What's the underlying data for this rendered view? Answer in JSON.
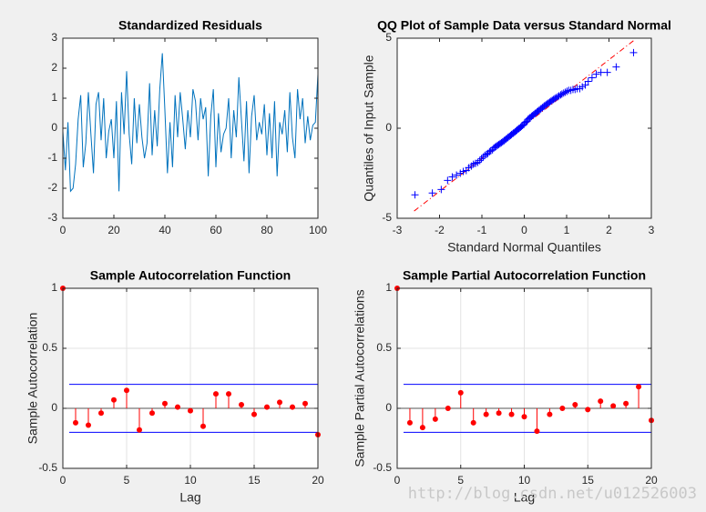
{
  "chart_data": [
    {
      "type": "line",
      "title": "Standardized Residuals",
      "color": "#0072bd",
      "x": [
        0,
        1,
        2,
        3,
        4,
        5,
        6,
        7,
        8,
        9,
        10,
        11,
        12,
        13,
        14,
        15,
        16,
        17,
        18,
        19,
        20,
        21,
        22,
        23,
        24,
        25,
        26,
        27,
        28,
        29,
        30,
        31,
        32,
        33,
        34,
        35,
        36,
        37,
        38,
        39,
        40,
        41,
        42,
        43,
        44,
        45,
        46,
        47,
        48,
        49,
        50,
        51,
        52,
        53,
        54,
        55,
        56,
        57,
        58,
        59,
        60,
        61,
        62,
        63,
        64,
        65,
        66,
        67,
        68,
        69,
        70,
        71,
        72,
        73,
        74,
        75,
        76,
        77,
        78,
        79,
        80,
        81,
        82,
        83,
        84,
        85,
        86,
        87,
        88,
        89,
        90,
        91,
        92,
        93,
        94,
        95,
        96,
        97,
        98,
        99,
        100
      ],
      "y": [
        -0.1,
        -1.4,
        0.2,
        -2.1,
        -2.0,
        -1.2,
        0.3,
        1.1,
        -1.3,
        -0.5,
        1.2,
        -0.2,
        -1.5,
        0.8,
        1.2,
        -0.4,
        1.0,
        -1.0,
        -0.1,
        0.3,
        -1.0,
        0.9,
        -2.1,
        1.2,
        -0.2,
        1.9,
        -0.2,
        -1.2,
        1.0,
        -0.5,
        0.8,
        -0.3,
        -1.0,
        -0.5,
        1.5,
        -0.9,
        0.6,
        -0.6,
        1.3,
        2.5,
        0.6,
        -1.5,
        0.2,
        -1.3,
        1.1,
        -0.3,
        1.2,
        0.3,
        -0.7,
        0.6,
        -0.3,
        1.3,
        0.9,
        -0.4,
        1.0,
        0.3,
        0.7,
        -1.6,
        0.4,
        1.3,
        -1.3,
        0.5,
        -0.8,
        -0.2,
        0.0,
        1.0,
        -1.0,
        0.6,
        -0.3,
        1.7,
        0.3,
        -1.1,
        0.9,
        -1.5,
        0.4,
        1.1,
        -0.4,
        0.2,
        -0.2,
        0.8,
        -0.9,
        0.5,
        -1.0,
        0.9,
        -1.6,
        0.2,
        -0.2,
        0.6,
        -0.8,
        1.2,
        -0.3,
        -1.0,
        1.3,
        0.3,
        1.0,
        -0.5,
        0.4,
        -0.4,
        0.1,
        0.2,
        1.8
      ],
      "xlim": [
        0,
        100
      ],
      "xticks": [
        0,
        20,
        40,
        60,
        80,
        100
      ],
      "ylim": [
        -3,
        3
      ],
      "yticks": [
        -3,
        -2,
        -1,
        0,
        1,
        2,
        3
      ],
      "grid": false
    },
    {
      "type": "scatter",
      "title": "QQ Plot of Sample Data versus Standard Normal",
      "xlabel": "Standard Normal Quantiles",
      "ylabel": "Quantiles of Input Sample",
      "color": "#0000ff",
      "marker": "+",
      "x": [
        -2.58,
        -2.17,
        -1.96,
        -1.81,
        -1.7,
        -1.6,
        -1.51,
        -1.44,
        -1.37,
        -1.31,
        -1.25,
        -1.2,
        -1.15,
        -1.1,
        -1.05,
        -1.01,
        -0.97,
        -0.93,
        -0.89,
        -0.86,
        -0.82,
        -0.79,
        -0.75,
        -0.72,
        -0.69,
        -0.66,
        -0.63,
        -0.6,
        -0.57,
        -0.54,
        -0.51,
        -0.48,
        -0.46,
        -0.43,
        -0.4,
        -0.38,
        -0.35,
        -0.32,
        -0.3,
        -0.27,
        -0.25,
        -0.22,
        -0.19,
        -0.17,
        -0.14,
        -0.12,
        -0.09,
        -0.07,
        -0.04,
        -0.01,
        0.01,
        0.04,
        0.07,
        0.09,
        0.12,
        0.14,
        0.17,
        0.19,
        0.22,
        0.25,
        0.27,
        0.3,
        0.32,
        0.35,
        0.38,
        0.4,
        0.43,
        0.46,
        0.48,
        0.51,
        0.54,
        0.57,
        0.6,
        0.63,
        0.66,
        0.69,
        0.72,
        0.75,
        0.79,
        0.82,
        0.86,
        0.89,
        0.93,
        0.97,
        1.01,
        1.05,
        1.1,
        1.15,
        1.2,
        1.25,
        1.31,
        1.37,
        1.44,
        1.51,
        1.6,
        1.7,
        1.81,
        1.96,
        2.17,
        2.58
      ],
      "y": [
        -3.7,
        -3.6,
        -3.4,
        -2.9,
        -2.7,
        -2.6,
        -2.5,
        -2.4,
        -2.35,
        -2.2,
        -2.1,
        -2.0,
        -1.95,
        -1.9,
        -1.8,
        -1.7,
        -1.6,
        -1.5,
        -1.45,
        -1.4,
        -1.3,
        -1.25,
        -1.2,
        -1.1,
        -1.05,
        -1.0,
        -0.95,
        -0.9,
        -0.85,
        -0.8,
        -0.75,
        -0.7,
        -0.65,
        -0.6,
        -0.55,
        -0.5,
        -0.45,
        -0.4,
        -0.35,
        -0.3,
        -0.25,
        -0.2,
        -0.15,
        -0.1,
        -0.05,
        0,
        0.05,
        0.1,
        0.15,
        0.2,
        0.3,
        0.35,
        0.4,
        0.5,
        0.55,
        0.6,
        0.65,
        0.7,
        0.75,
        0.8,
        0.85,
        0.9,
        0.95,
        1.0,
        1.05,
        1.1,
        1.15,
        1.2,
        1.25,
        1.3,
        1.35,
        1.4,
        1.45,
        1.5,
        1.55,
        1.6,
        1.65,
        1.7,
        1.75,
        1.8,
        1.85,
        1.9,
        1.95,
        2.0,
        2.05,
        2.1,
        2.1,
        2.15,
        2.15,
        2.2,
        2.2,
        2.3,
        2.4,
        2.6,
        2.8,
        3.0,
        3.1,
        3.1,
        3.4,
        4.2
      ],
      "reference_line": {
        "color": "#ff0000",
        "x": [
          -2.6,
          2.6
        ],
        "y": [
          -4.6,
          4.9
        ]
      },
      "xlim": [
        -3,
        3
      ],
      "xticks": [
        -3,
        -2,
        -1,
        0,
        1,
        2,
        3
      ],
      "ylim": [
        -5,
        5
      ],
      "yticks": [
        -5,
        0,
        5
      ],
      "grid": false
    },
    {
      "type": "stem",
      "title": "Sample Autocorrelation Function",
      "xlabel": "Lag",
      "ylabel": "Sample Autocorrelation",
      "color": "#ff0000",
      "x": [
        0,
        1,
        2,
        3,
        4,
        5,
        6,
        7,
        8,
        9,
        10,
        11,
        12,
        13,
        14,
        15,
        16,
        17,
        18,
        19,
        20
      ],
      "y": [
        1,
        -0.12,
        -0.14,
        -0.04,
        0.07,
        0.15,
        -0.18,
        -0.04,
        0.04,
        0.01,
        -0.02,
        -0.15,
        0.12,
        0.12,
        0.03,
        -0.05,
        0.01,
        0.05,
        0.01,
        0.04,
        -0.22
      ],
      "bounds": [
        0.2,
        -0.2
      ],
      "bounds_color": "#0000ff",
      "xlim": [
        0,
        20
      ],
      "xticks": [
        0,
        5,
        10,
        15,
        20
      ],
      "ylim": [
        -0.5,
        1
      ],
      "yticks": [
        -0.5,
        0,
        0.5,
        1
      ],
      "grid": true
    },
    {
      "type": "stem",
      "title": "Sample Partial Autocorrelation Function",
      "xlabel": "Lag",
      "ylabel": "Sample Partial Autocorrelations",
      "color": "#ff0000",
      "x": [
        0,
        1,
        2,
        3,
        4,
        5,
        6,
        7,
        8,
        9,
        10,
        11,
        12,
        13,
        14,
        15,
        16,
        17,
        18,
        19,
        20
      ],
      "y": [
        1,
        -0.12,
        -0.16,
        -0.09,
        0.0,
        0.13,
        -0.12,
        -0.05,
        -0.04,
        -0.05,
        -0.07,
        -0.19,
        -0.05,
        0.0,
        0.03,
        -0.01,
        0.06,
        0.02,
        0.04,
        0.18,
        -0.1
      ],
      "bounds": [
        0.2,
        -0.2
      ],
      "bounds_color": "#0000ff",
      "xlim": [
        0,
        20
      ],
      "xticks": [
        0,
        5,
        10,
        15,
        20
      ],
      "ylim": [
        -0.5,
        1
      ],
      "yticks": [
        -0.5,
        0,
        0.5,
        1
      ],
      "grid": true
    }
  ],
  "watermark": "http://blog.csdn.net/u012526003"
}
